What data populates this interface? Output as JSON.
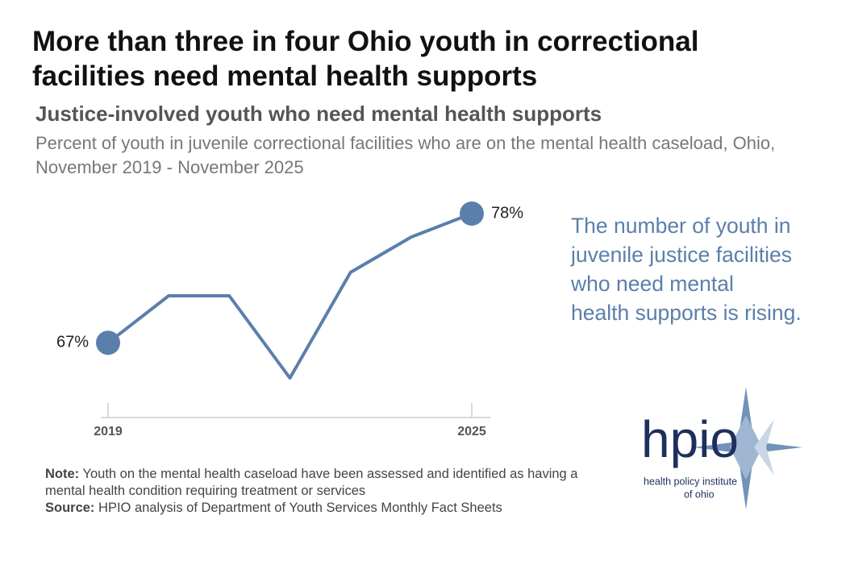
{
  "chart_data": {
    "type": "line",
    "title": "More than three in four Ohio youth in correctional facilities need mental health supports",
    "subtitle": "Justice-involved youth who need mental health supports",
    "description": "Percent of youth in juvenile correctional facilities who are on the mental health caseload, Ohio, November 2019 - November 2025",
    "x": [
      2019,
      2020,
      2021,
      2022,
      2023,
      2024,
      2025
    ],
    "xlim": [
      2019,
      2025
    ],
    "xticks": [
      2019,
      2025
    ],
    "series": [
      {
        "color": "#5b7fab",
        "values": [
          67,
          71,
          71,
          64,
          73,
          76,
          78
        ],
        "value_labels": [
          "67%",
          null,
          null,
          null,
          null,
          null,
          "78%"
        ]
      }
    ],
    "annotation": [
      "The number of youth in",
      "juvenile justice facilities",
      "who need mental",
      "health supports is rising."
    ],
    "note_label": "Note:",
    "note": "Youth on the mental health caseload have been assessed and identified as having a mental health condition requiring treatment or services",
    "source_label": "Source:",
    "source": "HPIO analysis of Department of Youth Services Monthly Fact Sheets",
    "logo": "hpio",
    "logo_caption": [
      "health policy institute",
      "of ohio"
    ]
  }
}
